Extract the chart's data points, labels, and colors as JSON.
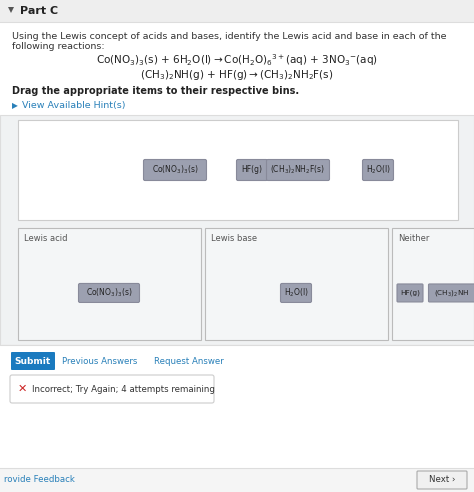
{
  "title": "Part C",
  "bg_top": "#e8e8e8",
  "bg_white": "#ffffff",
  "bg_main": "#f5f5f5",
  "instruction": "Using the Lewis concept of acids and bases, identify the Lewis acid and base in each of the following reactions:",
  "hint_text": "View Available Hint(s)",
  "drag_text": "Drag the appropriate items to their respective bins.",
  "bins": [
    "Lewis acid",
    "Lewis base",
    "Neither"
  ],
  "submit_btn_color": "#1a7abf",
  "submit_btn_text": "Submit",
  "link_color": "#2980b9",
  "prev_answers_text": "Previous Answers",
  "request_answer_text": "Request Answer",
  "error_text": "Incorrect; Try Again; 4 attempts remaining",
  "next_text": "Next ›",
  "provide_feedback": "rovide Feedback",
  "item_bg": "#9ca0b0",
  "item_border": "#888a9a",
  "bin_border": "#bbbbbb",
  "header_bg": "#f0f0f0",
  "header_line": "#dddddd",
  "drag_area_bg": "#ffffff",
  "drag_area_border": "#cccccc",
  "bin_bg": "#f2f4f5"
}
